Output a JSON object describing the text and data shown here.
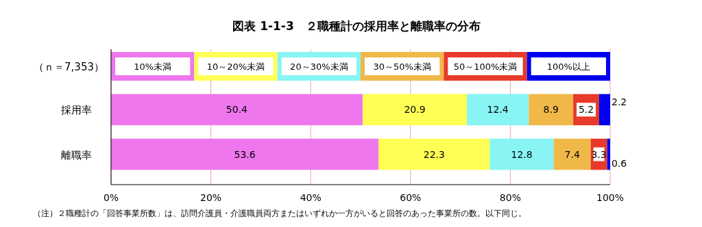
{
  "chart_data": {
    "type": "bar",
    "orientation": "horizontal",
    "stacked": true,
    "title": "図表 1-1-3　２職種計の採用率と離職率の分布",
    "legend_title": "（ｎ＝7,353）",
    "legend": "top",
    "categories": [
      "採用率",
      "離職率"
    ],
    "series": [
      {
        "name": "10%未満",
        "color": "#ee77ee",
        "values": [
          50.4,
          53.6
        ]
      },
      {
        "name": "10～20%未満",
        "color": "#ffff55",
        "values": [
          20.9,
          22.3
        ]
      },
      {
        "name": "20～30%未満",
        "color": "#88f4f4",
        "values": [
          12.4,
          12.8
        ]
      },
      {
        "name": "30～50%未満",
        "color": "#f0b848",
        "values": [
          8.9,
          7.4
        ]
      },
      {
        "name": "50～100%未満",
        "color": "#e83a2a",
        "values": [
          5.2,
          3.3
        ]
      },
      {
        "name": "100%以上",
        "color": "#0000ee",
        "values": [
          2.2,
          0.6
        ]
      }
    ],
    "data_labels": true,
    "grid": "x",
    "xlim": [
      0,
      100
    ],
    "xticks": [
      {
        "value": 0,
        "label": "0%"
      },
      {
        "value": 20,
        "label": "20%"
      },
      {
        "value": 40,
        "label": "40%"
      },
      {
        "value": 60,
        "label": "60%"
      },
      {
        "value": 80,
        "label": "80%"
      },
      {
        "value": 100,
        "label": "100%"
      }
    ],
    "annotations": [
      "（注）２職種計の「回答事業所数」は、訪問介護員・介護職員両方またはいずれか一方がいると回答のあった事業所の数。以下同じ。"
    ]
  }
}
